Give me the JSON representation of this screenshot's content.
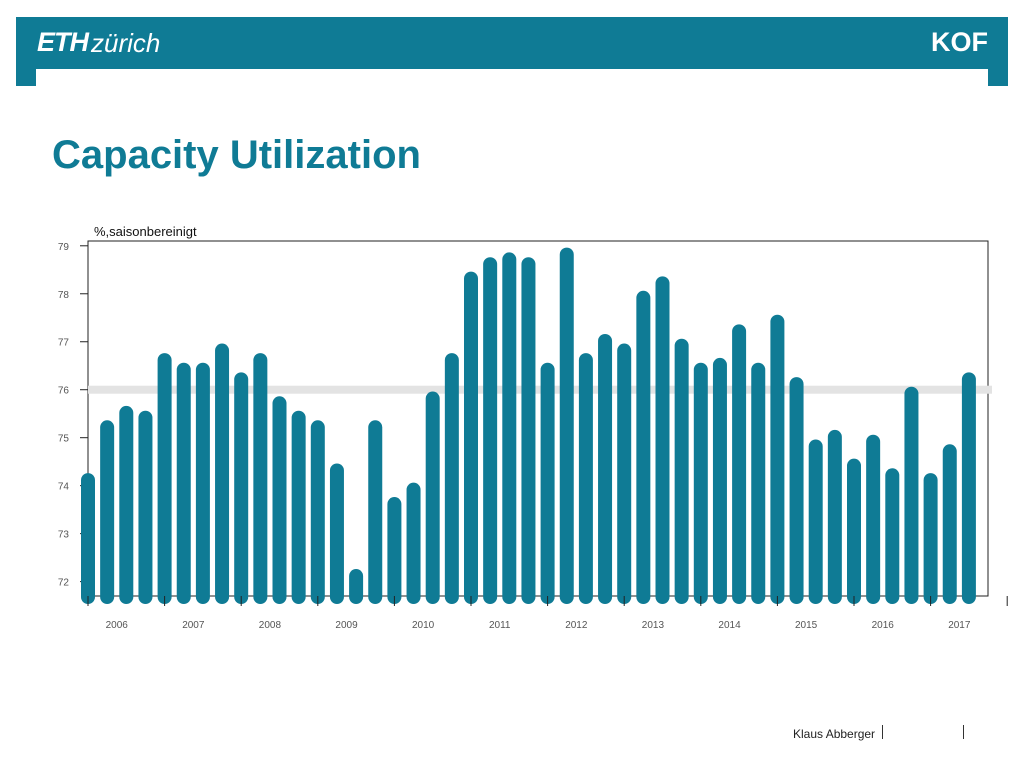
{
  "header": {
    "logo_eth": "ETH",
    "logo_zurich": "zürich",
    "logo_right": "KOF",
    "color": "#0f7b95"
  },
  "title": "Capacity Utilization",
  "footer": {
    "author": "Klaus Abberger"
  },
  "chart_data": {
    "type": "bar",
    "unit_label": "%,saisonbereinigt",
    "ylim": [
      71.7,
      79.1
    ],
    "yticks": [
      72,
      73,
      74,
      75,
      76,
      77,
      78,
      79
    ],
    "reference_line": 76,
    "bar_color": "#0f7b95",
    "reference_color": "#e3e3e3",
    "x_labels": [
      "2006",
      "2007",
      "2008",
      "2009",
      "2010",
      "2011",
      "2012",
      "2013",
      "2014",
      "2015",
      "2016",
      "2017"
    ],
    "values": [
      74.2,
      75.3,
      75.6,
      75.5,
      76.7,
      76.5,
      76.5,
      76.9,
      76.3,
      76.7,
      75.8,
      75.5,
      75.3,
      74.4,
      72.2,
      75.3,
      73.7,
      74.0,
      75.9,
      76.7,
      78.4,
      78.7,
      78.8,
      78.7,
      76.5,
      78.9,
      76.7,
      77.1,
      76.9,
      78.0,
      78.3,
      77.0,
      76.5,
      76.6,
      77.3,
      76.5,
      77.5,
      76.2,
      74.9,
      75.1,
      74.5,
      75.0,
      74.3,
      76.0,
      74.2,
      74.8,
      76.3
    ]
  }
}
